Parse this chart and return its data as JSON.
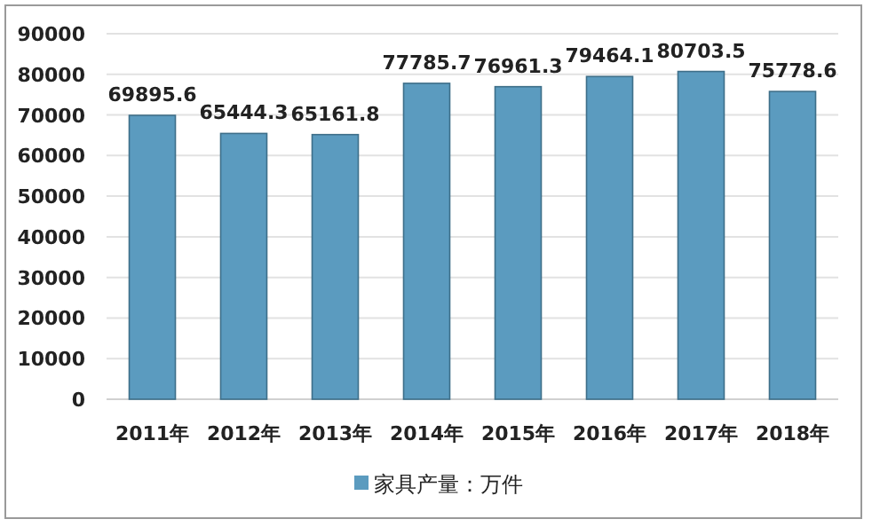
{
  "chart_data": {
    "type": "bar",
    "categories": [
      "2011年",
      "2012年",
      "2013年",
      "2014年",
      "2015年",
      "2016年",
      "2017年",
      "2018年"
    ],
    "series": [
      {
        "name": "家具产量：万件",
        "color": "#5b9bbf",
        "values": [
          69895.6,
          65444.3,
          65161.8,
          77785.7,
          76961.3,
          79464.1,
          80703.5,
          75778.6
        ]
      }
    ],
    "ylim": [
      0,
      90000
    ],
    "yticks": [
      0,
      10000,
      20000,
      30000,
      40000,
      50000,
      60000,
      70000,
      80000,
      90000
    ],
    "grid": "y",
    "data_labels": true,
    "legend": "bottom"
  }
}
